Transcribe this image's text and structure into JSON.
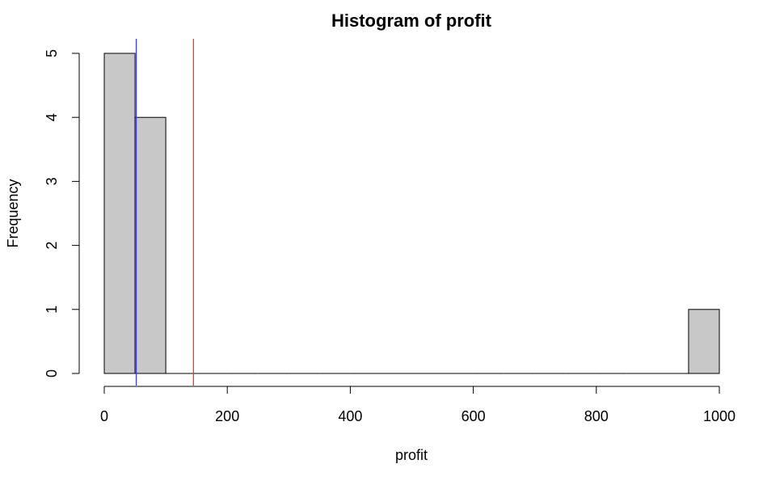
{
  "chart_data": {
    "type": "bar",
    "title": "Histogram of profit",
    "xlabel": "profit",
    "ylabel": "Frequency",
    "bins": [
      {
        "start": 0,
        "end": 50,
        "count": 5
      },
      {
        "start": 50,
        "end": 100,
        "count": 4
      },
      {
        "start": 100,
        "end": 150,
        "count": 0
      },
      {
        "start": 150,
        "end": 200,
        "count": 0
      },
      {
        "start": 200,
        "end": 250,
        "count": 0
      },
      {
        "start": 250,
        "end": 300,
        "count": 0
      },
      {
        "start": 300,
        "end": 350,
        "count": 0
      },
      {
        "start": 350,
        "end": 400,
        "count": 0
      },
      {
        "start": 400,
        "end": 450,
        "count": 0
      },
      {
        "start": 450,
        "end": 500,
        "count": 0
      },
      {
        "start": 500,
        "end": 550,
        "count": 0
      },
      {
        "start": 550,
        "end": 600,
        "count": 0
      },
      {
        "start": 600,
        "end": 650,
        "count": 0
      },
      {
        "start": 650,
        "end": 700,
        "count": 0
      },
      {
        "start": 700,
        "end": 750,
        "count": 0
      },
      {
        "start": 750,
        "end": 800,
        "count": 0
      },
      {
        "start": 800,
        "end": 850,
        "count": 0
      },
      {
        "start": 850,
        "end": 900,
        "count": 0
      },
      {
        "start": 900,
        "end": 950,
        "count": 0
      },
      {
        "start": 950,
        "end": 1000,
        "count": 1
      }
    ],
    "xlim": [
      0,
      1000
    ],
    "ylim": [
      0,
      5
    ],
    "x_ticks": [
      0,
      200,
      400,
      600,
      800,
      1000
    ],
    "y_ticks": [
      0,
      1,
      2,
      3,
      4,
      5
    ],
    "vlines": [
      {
        "x": 52,
        "color": "#3a3aff"
      },
      {
        "x": 145,
        "color": "#ff3030"
      }
    ],
    "bar_fill": "#c8c8c8",
    "bar_stroke": "#000000",
    "grid": false
  }
}
